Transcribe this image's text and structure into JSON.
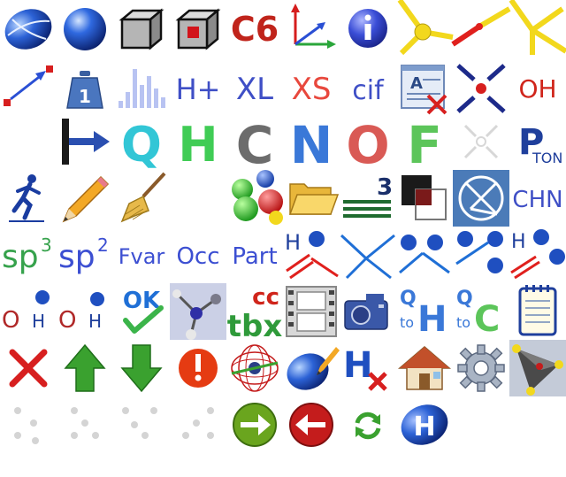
{
  "toolbar": {
    "labels": {
      "c6": "C6",
      "h_plus": "H+",
      "xl": "XL",
      "xs": "XS",
      "cif": "cif",
      "oh": "OH",
      "weight": "1",
      "q": "Q",
      "h": "H",
      "c": "C",
      "n": "N",
      "o": "O",
      "f": "F",
      "p": "P",
      "ton": "TON",
      "three": "3",
      "chn": "CHN",
      "sp3_base": "sp",
      "sp3_sup": "3",
      "sp2_base": "sp",
      "sp2_sup": "2",
      "fvar": "Fvar",
      "occ": "Occ",
      "part": "Part",
      "h_geom": "H",
      "ohh_o": "O",
      "ohh_h": "H",
      "oh2_o": "O",
      "oh2_h": "H",
      "ok": "OK",
      "cc": "cc",
      "tbx": "tbx",
      "q_to_h_q": "Q",
      "q_to_h_to": "to",
      "q_to_h_h": "H",
      "q_to_c_q": "Q",
      "q_to_c_to": "to",
      "q_to_c_c": "C",
      "h_delete": "H",
      "h_ball": "H"
    }
  },
  "colors": {
    "c6_red": "#c0241b",
    "atom_blue": "#1f4fb3",
    "label_blue": "#3f4fc6",
    "xs_red": "#e8483d",
    "oh_red": "#d0251b",
    "q_cyan": "#32c6d6",
    "h_green": "#40cc55",
    "c_gray": "#6c6c6c",
    "n_blue": "#3a78d8",
    "o_red": "#d95a55",
    "f_green": "#5cc55a",
    "sp_green": "#36a24c",
    "sp_blue": "#3c4fd2",
    "fvar_blue": "#3c4fd2",
    "green_arrow": "#3aa12f",
    "red_circle": "#c41c1c",
    "warning_red": "#e53b12",
    "bond_red": "#e0201d",
    "bond_yellow": "#f2d81d"
  }
}
